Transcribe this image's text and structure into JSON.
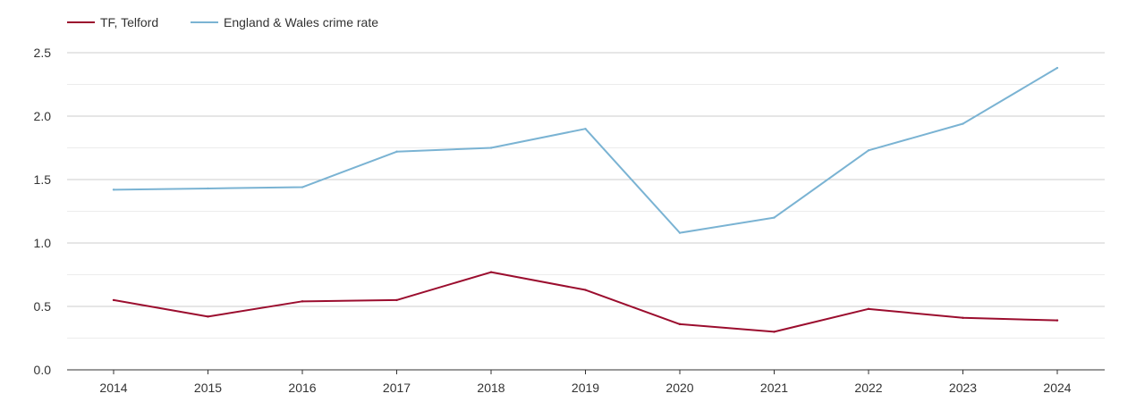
{
  "chart_data": {
    "type": "line",
    "title": "",
    "xlabel": "",
    "ylabel": "",
    "categories": [
      "2014",
      "2015",
      "2016",
      "2017",
      "2018",
      "2019",
      "2020",
      "2021",
      "2022",
      "2023",
      "2024"
    ],
    "ylim": [
      0,
      2.5
    ],
    "yticks": [
      "0.0",
      "0.5",
      "1.0",
      "1.5",
      "2.0",
      "2.5"
    ],
    "grid": true,
    "legend_position": "top-left",
    "series": [
      {
        "name": "TF, Telford",
        "color": "#9b0d2e",
        "values": [
          0.55,
          0.42,
          0.54,
          0.55,
          0.77,
          0.63,
          0.36,
          0.3,
          0.48,
          0.41,
          0.39
        ]
      },
      {
        "name": "England & Wales crime rate",
        "color": "#7ab3d3",
        "values": [
          1.42,
          1.43,
          1.44,
          1.72,
          1.75,
          1.9,
          1.08,
          1.2,
          1.73,
          1.94,
          2.38
        ]
      }
    ]
  }
}
